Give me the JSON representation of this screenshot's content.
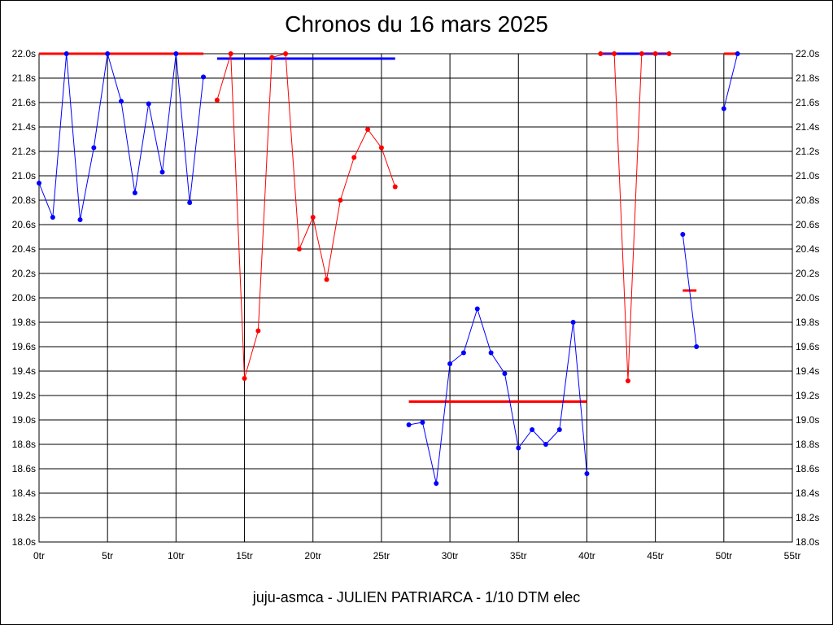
{
  "chart_data": {
    "type": "line",
    "title": "Chronos du 16 mars 2025",
    "subtitle": "juju-asmca - JULIEN PATRIARCA - 1/10 DTM elec",
    "xlim": [
      0,
      55
    ],
    "ylim": [
      18.0,
      22.0
    ],
    "x_ticks": [
      0,
      5,
      10,
      15,
      20,
      25,
      30,
      35,
      40,
      45,
      50,
      55
    ],
    "x_tick_labels": [
      "0tr",
      "5tr",
      "10tr",
      "15tr",
      "20tr",
      "25tr",
      "30tr",
      "35tr",
      "40tr",
      "45tr",
      "50tr",
      "55tr"
    ],
    "y_ticks": [
      18.0,
      18.2,
      18.4,
      18.6,
      18.8,
      19.0,
      19.2,
      19.4,
      19.6,
      19.8,
      20.0,
      20.2,
      20.4,
      20.6,
      20.8,
      21.0,
      21.2,
      21.4,
      21.6,
      21.8,
      22.0
    ],
    "y_tick_labels": [
      "18.0s",
      "18.2s",
      "18.4s",
      "18.6s",
      "18.8s",
      "19.0s",
      "19.2s",
      "19.4s",
      "19.6s",
      "19.8s",
      "20.0s",
      "20.2s",
      "20.4s",
      "20.6s",
      "20.8s",
      "21.0s",
      "21.2s",
      "21.4s",
      "21.6s",
      "21.8s",
      "22.0s"
    ],
    "grid": true,
    "series": [
      {
        "color": "#0000ff",
        "x": [
          0,
          1,
          2,
          3,
          4,
          5,
          6,
          7,
          8,
          9,
          10,
          11,
          12
        ],
        "values": [
          20.94,
          20.66,
          22.0,
          20.64,
          21.23,
          22.0,
          21.61,
          20.86,
          21.59,
          21.03,
          22.0,
          20.78,
          21.81
        ],
        "average": {
          "value": 22.0,
          "x": [
            0,
            12
          ],
          "color": "#ff0000"
        }
      },
      {
        "color": "#ff0000",
        "x": [
          13,
          14,
          15,
          16,
          17,
          18,
          19,
          20,
          21,
          22,
          23,
          24,
          25,
          26
        ],
        "values": [
          21.62,
          22.0,
          19.34,
          19.73,
          21.97,
          22.0,
          20.4,
          20.66,
          20.15,
          20.8,
          21.15,
          21.38,
          21.23,
          20.91
        ],
        "average": {
          "value": 21.96,
          "x": [
            13,
            26
          ],
          "color": "#0000ff"
        }
      },
      {
        "color": "#0000ff",
        "x": [
          27,
          28,
          29,
          30,
          31,
          32,
          33,
          34,
          35,
          36,
          37,
          38,
          39,
          40
        ],
        "values": [
          18.96,
          18.98,
          18.48,
          19.46,
          19.55,
          19.91,
          19.55,
          19.38,
          18.77,
          18.92,
          18.8,
          18.92,
          19.8,
          18.56
        ],
        "average": {
          "value": 19.15,
          "x": [
            27,
            40
          ],
          "color": "#ff0000"
        }
      },
      {
        "color": "#ff0000",
        "x": [
          41,
          42,
          43,
          44,
          45,
          46
        ],
        "values": [
          22.0,
          22.0,
          19.32,
          22.0,
          22.0,
          22.0
        ],
        "average": {
          "value": 22.0,
          "x": [
            41,
            46
          ],
          "color": "#0000ff"
        }
      },
      {
        "color": "#0000ff",
        "x": [
          47,
          48
        ],
        "values": [
          20.52,
          19.6
        ],
        "average": {
          "value": 20.06,
          "x": [
            47,
            48
          ],
          "color": "#ff0000"
        }
      },
      {
        "color": "#0000ff",
        "x": [
          50,
          51
        ],
        "values": [
          21.55,
          22.0
        ],
        "average": {
          "value": 22.0,
          "x": [
            50,
            51
          ],
          "color": "#ff0000"
        }
      }
    ]
  }
}
